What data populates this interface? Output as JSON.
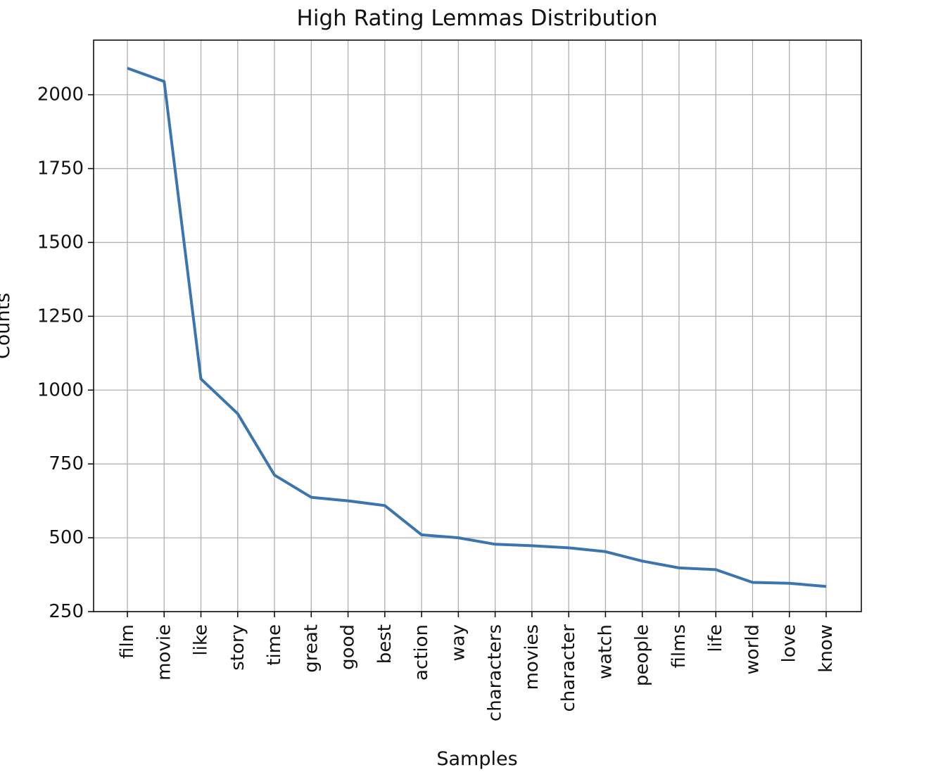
{
  "chart_data": {
    "type": "line",
    "title": "High Rating Lemmas Distribution",
    "xlabel": "Samples",
    "ylabel": "Counts",
    "categories": [
      "film",
      "movie",
      "like",
      "story",
      "time",
      "great",
      "good",
      "best",
      "action",
      "way",
      "characters",
      "movies",
      "character",
      "watch",
      "people",
      "films",
      "life",
      "world",
      "love",
      "know"
    ],
    "values": [
      2090,
      2045,
      1038,
      920,
      712,
      637,
      625,
      609,
      510,
      500,
      478,
      473,
      466,
      453,
      421,
      398,
      392,
      349,
      346,
      335
    ],
    "yticks": [
      "250",
      "500",
      "750",
      "1000",
      "1250",
      "1500",
      "1750",
      "2000"
    ],
    "ylim": [
      250,
      2185
    ],
    "grid": true,
    "legend": false,
    "line_color": "#3b75af",
    "grid_color": "#b0b0b0"
  }
}
